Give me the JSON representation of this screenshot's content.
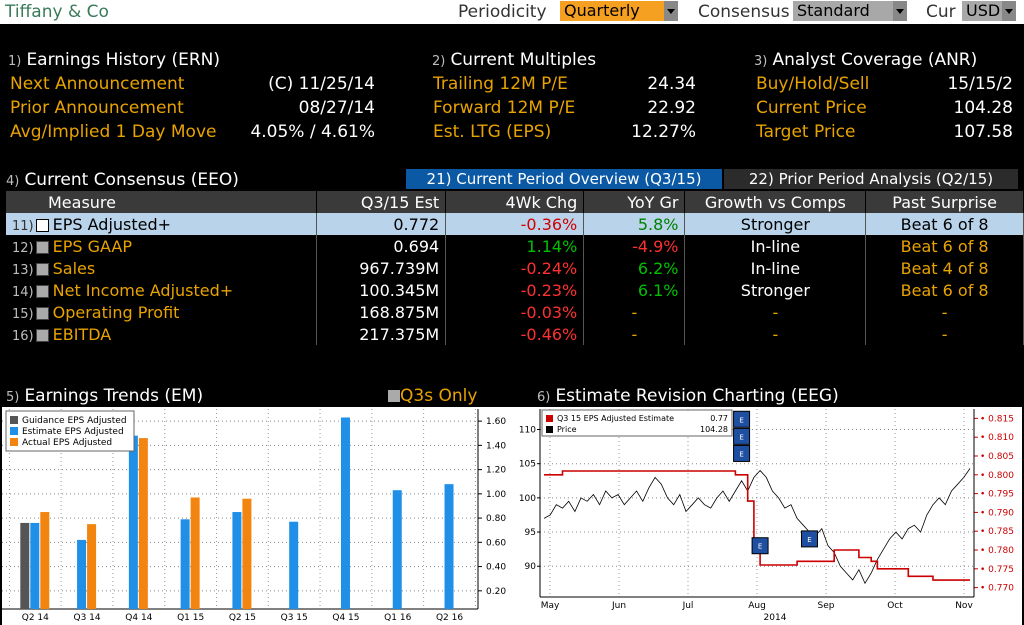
{
  "header": {
    "company": "Tiffany & Co",
    "periodicity_label": "Periodicity",
    "periodicity_value": "Quarterly",
    "consensus_label": "Consensus",
    "consensus_value": "Standard",
    "cur_label": "Cur",
    "cur_value": "USD"
  },
  "earnings_history": {
    "num": "1)",
    "title": "Earnings History (ERN)",
    "rows": [
      {
        "k": "Next Announcement",
        "v": "(C)  11/25/14"
      },
      {
        "k": "Prior Announcement",
        "v": "08/27/14"
      },
      {
        "k": "Avg/Implied 1 Day Move",
        "v": "4.05% / 4.61%"
      }
    ]
  },
  "multiples": {
    "num": "2)",
    "title": "Current Multiples",
    "rows": [
      {
        "k": "Trailing 12M P/E",
        "v": "24.34"
      },
      {
        "k": "Forward 12M P/E",
        "v": "22.92"
      },
      {
        "k": "Est. LTG (EPS)",
        "v": "12.27%"
      }
    ]
  },
  "analyst": {
    "num": "3)",
    "title": "Analyst Coverage (ANR)",
    "rows": [
      {
        "k": "Buy/Hold/Sell",
        "v": "15/15/2"
      },
      {
        "k": "Current Price",
        "v": "104.28"
      },
      {
        "k": "Target Price",
        "v": "107.58"
      }
    ]
  },
  "consensus": {
    "num": "4)",
    "title": "Current Consensus (EEO)",
    "tab1": "21) Current Period Overview (Q3/15)",
    "tab2": "22) Prior Period Analysis (Q2/15)",
    "headers": [
      "Measure",
      "Q3/15 Est",
      "4Wk Chg",
      "YoY Gr",
      "Growth vs Comps",
      "Past Surprise"
    ],
    "rows": [
      {
        "n": "11)",
        "measure": "EPS Adjusted+",
        "est": "0.772",
        "chg": "-0.36%",
        "yoy": "5.8%",
        "growth": "Stronger",
        "surprise": "Beat 6 of 8"
      },
      {
        "n": "12)",
        "measure": "EPS GAAP",
        "est": "0.694",
        "chg": "1.14%",
        "yoy": "-4.9%",
        "growth": "In-line",
        "surprise": "Beat 6 of 8"
      },
      {
        "n": "13)",
        "measure": "Sales",
        "est": "967.739M",
        "chg": "-0.24%",
        "yoy": "6.2%",
        "growth": "In-line",
        "surprise": "Beat 4 of 8"
      },
      {
        "n": "14)",
        "measure": "Net Income Adjusted+",
        "est": "100.345M",
        "chg": "-0.23%",
        "yoy": "6.1%",
        "growth": "Stronger",
        "surprise": "Beat 6 of 8"
      },
      {
        "n": "15)",
        "measure": "Operating Profit",
        "est": "168.875M",
        "chg": "-0.03%",
        "yoy": "-",
        "growth": "-",
        "surprise": "-"
      },
      {
        "n": "16)",
        "measure": "EBITDA",
        "est": "217.375M",
        "chg": "-0.46%",
        "yoy": "-",
        "growth": "-",
        "surprise": "-"
      }
    ]
  },
  "trends": {
    "num": "5)",
    "title": "Earnings Trends (EM)",
    "q3s": "Q3s Only"
  },
  "revision": {
    "num": "6)",
    "title": "Estimate Revision Charting (EEG)"
  },
  "chart_data": [
    {
      "type": "bar",
      "categories": [
        "Q2 14",
        "Q3 14",
        "Q4 14",
        "Q1 15",
        "Q2 15",
        "Q3 15",
        "Q4 15",
        "Q1 16",
        "Q2 16"
      ],
      "series": [
        {
          "name": "Guidance EPS Adjusted",
          "color": "#555555",
          "values": [
            0.76,
            null,
            null,
            null,
            null,
            null,
            null,
            null,
            null
          ]
        },
        {
          "name": "Estimate EPS Adjusted",
          "color": "#1f8fe8",
          "values": [
            0.76,
            0.62,
            1.48,
            0.79,
            0.85,
            0.77,
            1.63,
            1.03,
            1.08
          ]
        },
        {
          "name": "Actual EPS Adjusted",
          "color": "#f28410",
          "values": [
            0.85,
            0.75,
            1.46,
            0.97,
            0.96,
            null,
            null,
            null,
            null
          ]
        }
      ],
      "yticks": [
        0.2,
        0.4,
        0.6,
        0.8,
        1.0,
        1.2,
        1.4,
        1.6
      ],
      "ytick_labels": [
        "0.20",
        "0.40",
        "0.60",
        "0.80",
        "1.00",
        "1.20",
        "1.40",
        "1.60"
      ],
      "ylim": [
        0.05,
        1.7
      ]
    },
    {
      "type": "line",
      "x_labels": [
        "May",
        "Jun",
        "Jul",
        "Aug",
        "Sep",
        "Oct",
        "Nov"
      ],
      "x_year": "2014",
      "legend": [
        {
          "name": "Q3 15 EPS Adjusted Estimate",
          "value": "0.77",
          "color": "#cc0000"
        },
        {
          "name": "Price",
          "value": "104.28",
          "color": "#000000"
        }
      ],
      "left_ticks": [
        90,
        95,
        100,
        105,
        110
      ],
      "left_tick_labels": [
        "90",
        "95",
        "100",
        "105",
        "110"
      ],
      "left_ylim": [
        85.5,
        113
      ],
      "right_ticks": [
        0.77,
        0.775,
        0.78,
        0.785,
        0.79,
        0.795,
        0.8,
        0.805,
        0.81,
        0.815
      ],
      "right_tick_labels": [
        "0.770",
        "0.775",
        "0.780",
        "0.785",
        "0.790",
        "0.795",
        "0.800",
        "0.805",
        "0.810",
        "0.815"
      ],
      "right_ylim": [
        0.7675,
        0.8175
      ],
      "estimate": [
        [
          0,
          0.8
        ],
        [
          3,
          0.801
        ],
        [
          30,
          0.801
        ],
        [
          31,
          0.8
        ],
        [
          32,
          0.8
        ],
        [
          33,
          0.793
        ],
        [
          34,
          0.78
        ],
        [
          35,
          0.776
        ],
        [
          40,
          0.776
        ],
        [
          41,
          0.777
        ],
        [
          46,
          0.777
        ],
        [
          47,
          0.78
        ],
        [
          50,
          0.78
        ],
        [
          51,
          0.778
        ],
        [
          53,
          0.777
        ],
        [
          54,
          0.775
        ],
        [
          58,
          0.775
        ],
        [
          59,
          0.773
        ],
        [
          62,
          0.773
        ],
        [
          63,
          0.772
        ],
        [
          69,
          0.772
        ]
      ],
      "price": [
        [
          0,
          97
        ],
        [
          1,
          97.5
        ],
        [
          2,
          99
        ],
        [
          3,
          98.5
        ],
        [
          4,
          99.5
        ],
        [
          5,
          98
        ],
        [
          6,
          100
        ],
        [
          7,
          99.5
        ],
        [
          8,
          100.5
        ],
        [
          9,
          99
        ],
        [
          10,
          101
        ],
        [
          11,
          100
        ],
        [
          12,
          100.5
        ],
        [
          13,
          99
        ],
        [
          14,
          100
        ],
        [
          15,
          101
        ],
        [
          16,
          99.5
        ],
        [
          17,
          101.5
        ],
        [
          18,
          103
        ],
        [
          19,
          102
        ],
        [
          20,
          100
        ],
        [
          21,
          99
        ],
        [
          22,
          100.5
        ],
        [
          23,
          98
        ],
        [
          24,
          99
        ],
        [
          25,
          100
        ],
        [
          26,
          99
        ],
        [
          27,
          98.5
        ],
        [
          28,
          100
        ],
        [
          29,
          101
        ],
        [
          30,
          99.5
        ],
        [
          31,
          101
        ],
        [
          32,
          102.5
        ],
        [
          33,
          101
        ],
        [
          34,
          103
        ],
        [
          35,
          104
        ],
        [
          36,
          103
        ],
        [
          37,
          101
        ],
        [
          38,
          100
        ],
        [
          39,
          98.5
        ],
        [
          40,
          99
        ],
        [
          41,
          97
        ],
        [
          42,
          96
        ],
        [
          43,
          95
        ],
        [
          44,
          94.5
        ],
        [
          45,
          95.5
        ],
        [
          46,
          93
        ],
        [
          47,
          92
        ],
        [
          48,
          90
        ],
        [
          49,
          89
        ],
        [
          50,
          88
        ],
        [
          51,
          89.5
        ],
        [
          52,
          87.5
        ],
        [
          53,
          89
        ],
        [
          54,
          91
        ],
        [
          55,
          92.5
        ],
        [
          56,
          94
        ],
        [
          57,
          95
        ],
        [
          58,
          94
        ],
        [
          59,
          95.5
        ],
        [
          60,
          96
        ],
        [
          61,
          95
        ],
        [
          62,
          97.5
        ],
        [
          63,
          99
        ],
        [
          64,
          100
        ],
        [
          65,
          99
        ],
        [
          66,
          101
        ],
        [
          67,
          102
        ],
        [
          68,
          103
        ],
        [
          69,
          104.3
        ]
      ],
      "markers": [
        {
          "x": 32,
          "y": 111.5,
          "label": "E"
        },
        {
          "x": 32,
          "y": 109,
          "label": "E"
        },
        {
          "x": 32,
          "y": 106.5,
          "label": "E"
        },
        {
          "x": 35,
          "y": 93,
          "label": "E"
        },
        {
          "x": 43,
          "y": 94,
          "label": "E"
        }
      ]
    }
  ]
}
